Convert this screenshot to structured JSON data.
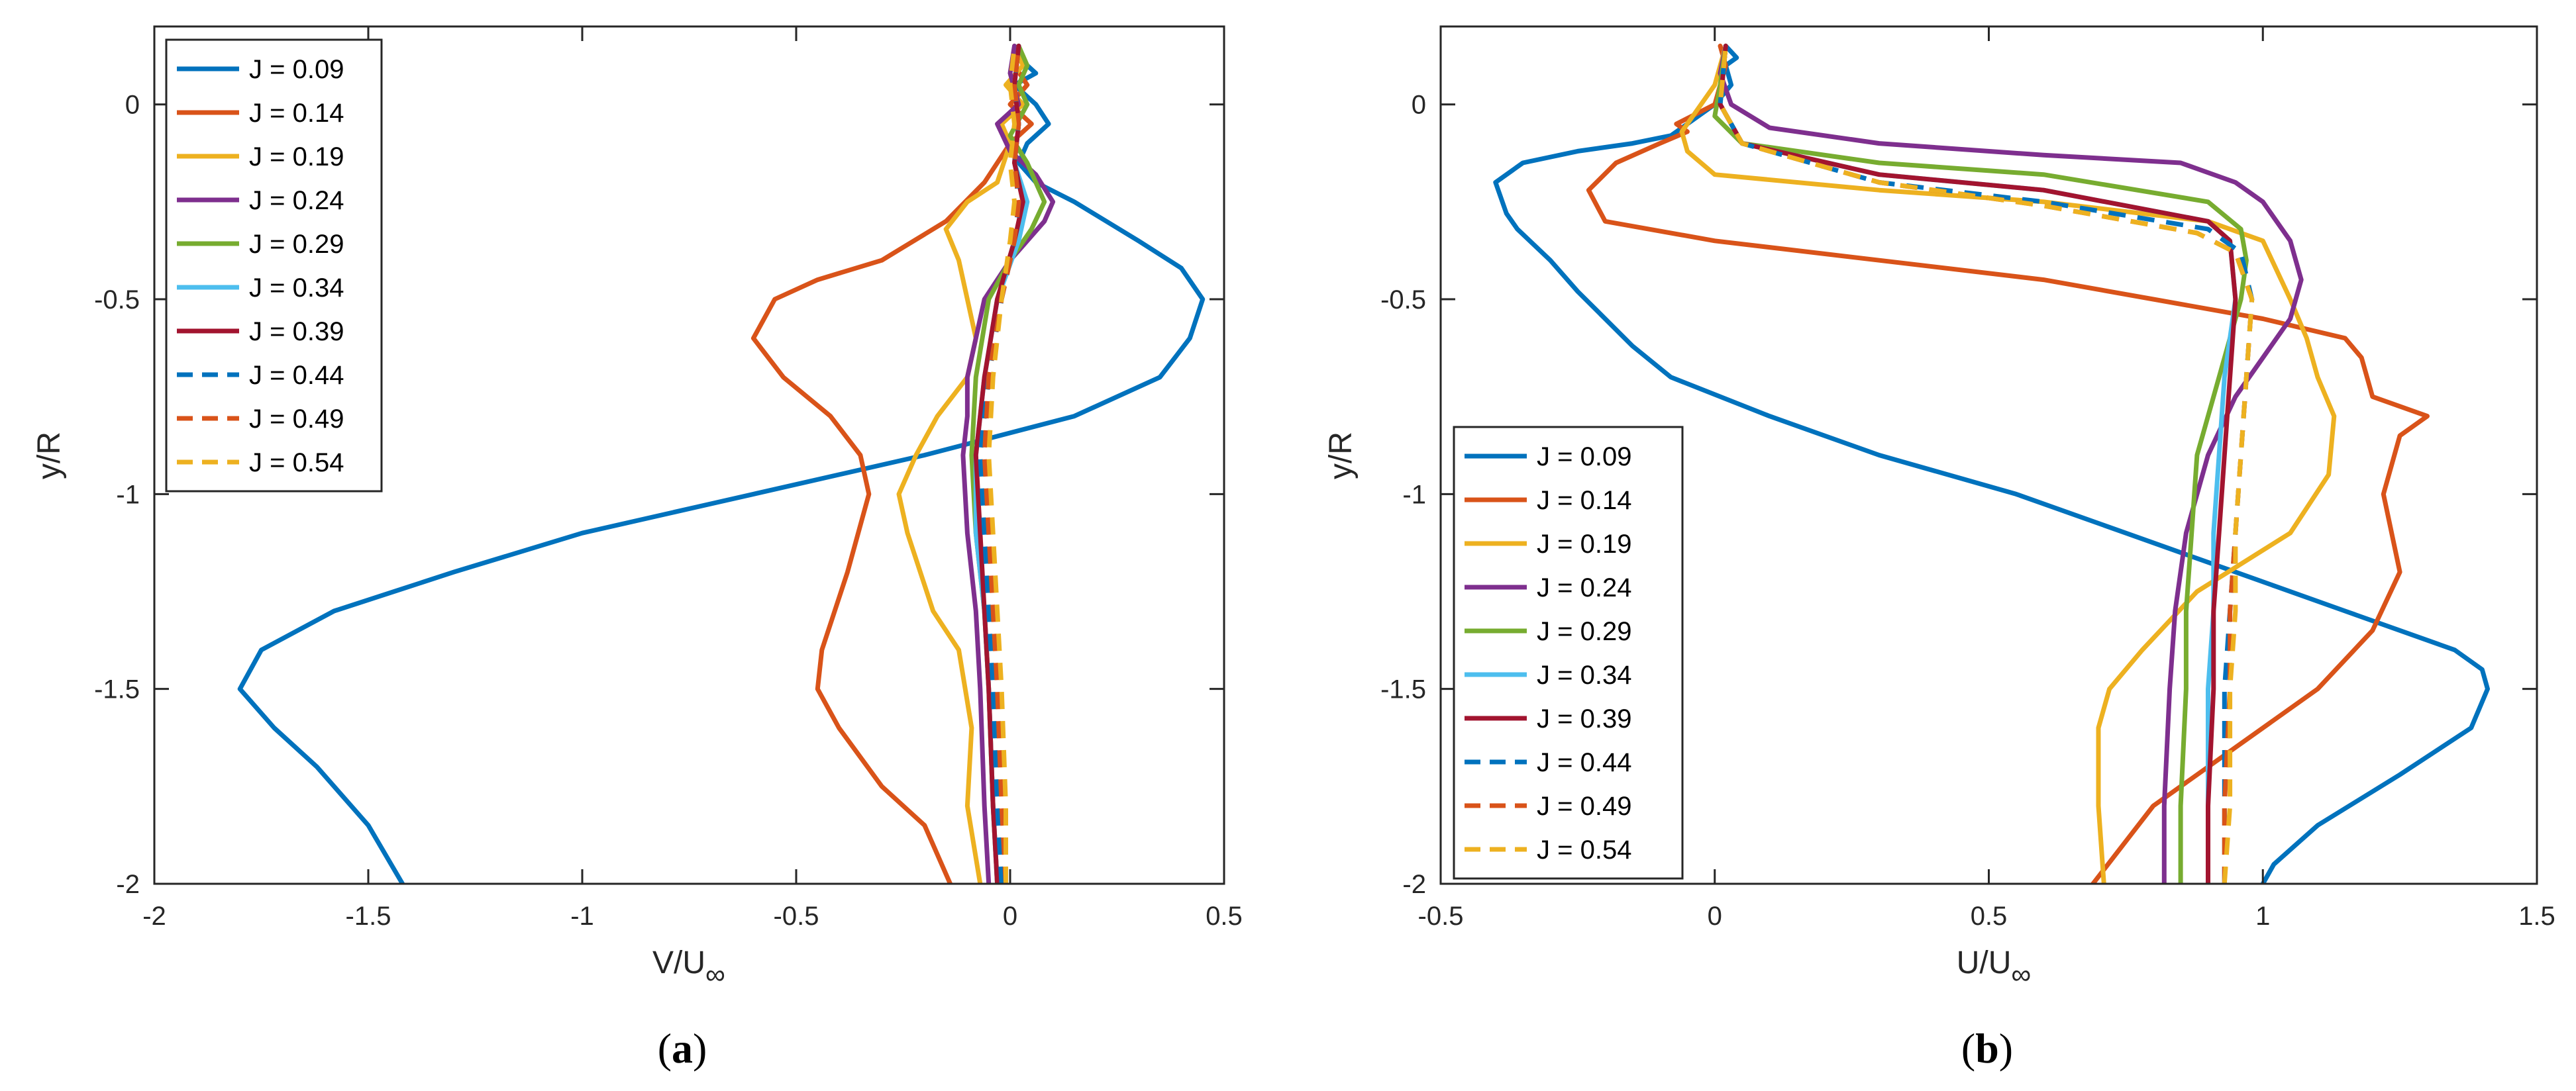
{
  "figure": {
    "panel_a_caption": {
      "open": "(",
      "letter": "a",
      "close": ")"
    },
    "panel_b_caption": {
      "open": "(",
      "letter": "b",
      "close": ")"
    }
  },
  "chart_data": [
    {
      "type": "line",
      "panel": "a",
      "xlabel": {
        "main": "V/U",
        "sub": "∞"
      },
      "ylabel": "y/R",
      "xlim": [
        -2,
        0.5
      ],
      "ylim": [
        -2,
        0.2
      ],
      "xticks": [
        -2,
        -1.5,
        -1,
        -0.5,
        0,
        0.5
      ],
      "xtick_labels": [
        "-2",
        "-1.5",
        "-1",
        "-0.5",
        "0",
        "0.5"
      ],
      "yticks": [
        -2,
        -1.5,
        -1,
        -0.5,
        0
      ],
      "ytick_labels": [
        "-2",
        "-1.5",
        "-1",
        "-0.5",
        "0"
      ],
      "grid": false,
      "legend_position": "top-left",
      "series": [
        {
          "name": "J = 0.09",
          "color": "#0072BD",
          "dash": "solid",
          "x": [
            -1.42,
            -1.5,
            -1.62,
            -1.72,
            -1.8,
            -1.75,
            -1.58,
            -1.3,
            -1.0,
            -0.6,
            -0.2,
            0.15,
            0.35,
            0.42,
            0.45,
            0.4,
            0.3,
            0.15,
            0.06,
            0.02,
            0.04,
            0.09,
            0.06,
            0.01,
            0.06,
            0.02,
            0.02
          ],
          "y": [
            -2.0,
            -1.85,
            -1.7,
            -1.6,
            -1.5,
            -1.4,
            -1.3,
            -1.2,
            -1.1,
            -1.0,
            -0.9,
            -0.8,
            -0.7,
            -0.6,
            -0.5,
            -0.42,
            -0.35,
            -0.25,
            -0.2,
            -0.15,
            -0.1,
            -0.05,
            0.0,
            0.05,
            0.08,
            0.12,
            0.15
          ]
        },
        {
          "name": "J = 0.14",
          "color": "#D95319",
          "dash": "solid",
          "x": [
            -0.14,
            -0.2,
            -0.3,
            -0.4,
            -0.45,
            -0.44,
            -0.38,
            -0.33,
            -0.35,
            -0.42,
            -0.53,
            -0.6,
            -0.55,
            -0.45,
            -0.3,
            -0.15,
            -0.06,
            0.0,
            0.05,
            0.0,
            0.04,
            0.01,
            0.02
          ],
          "y": [
            -2.0,
            -1.85,
            -1.75,
            -1.6,
            -1.5,
            -1.4,
            -1.2,
            -1.0,
            -0.9,
            -0.8,
            -0.7,
            -0.6,
            -0.5,
            -0.45,
            -0.4,
            -0.3,
            -0.2,
            -0.1,
            -0.05,
            0.0,
            0.05,
            0.1,
            0.15
          ]
        },
        {
          "name": "J = 0.19",
          "color": "#EDB120",
          "dash": "solid",
          "x": [
            -0.07,
            -0.1,
            -0.09,
            -0.12,
            -0.18,
            -0.24,
            -0.26,
            -0.22,
            -0.17,
            -0.1,
            -0.08,
            -0.1,
            -0.12,
            -0.15,
            -0.1,
            -0.03,
            0.0,
            -0.02,
            0.03,
            -0.01,
            0.03,
            0.01
          ],
          "y": [
            -2.0,
            -1.8,
            -1.6,
            -1.4,
            -1.3,
            -1.1,
            -1.0,
            -0.9,
            -0.8,
            -0.7,
            -0.6,
            -0.5,
            -0.4,
            -0.32,
            -0.25,
            -0.2,
            -0.1,
            -0.05,
            0.0,
            0.05,
            0.1,
            0.15
          ]
        },
        {
          "name": "J = 0.24",
          "color": "#7E2F8E",
          "dash": "solid",
          "x": [
            -0.05,
            -0.06,
            -0.07,
            -0.08,
            -0.1,
            -0.11,
            -0.1,
            -0.1,
            -0.08,
            -0.06,
            0.0,
            0.08,
            0.1,
            0.06,
            0.0,
            -0.03,
            0.02,
            0.0,
            0.01
          ],
          "y": [
            -2.0,
            -1.8,
            -1.5,
            -1.3,
            -1.1,
            -0.9,
            -0.8,
            -0.7,
            -0.6,
            -0.5,
            -0.4,
            -0.3,
            -0.25,
            -0.18,
            -0.12,
            -0.05,
            0.0,
            0.08,
            0.15
          ]
        },
        {
          "name": "J = 0.29",
          "color": "#77AC30",
          "dash": "solid",
          "x": [
            -0.03,
            -0.04,
            -0.05,
            -0.06,
            -0.08,
            -0.09,
            -0.08,
            -0.05,
            0.0,
            0.05,
            0.08,
            0.04,
            0.0,
            0.04,
            0.02,
            0.04,
            0.02
          ],
          "y": [
            -2.0,
            -1.8,
            -1.5,
            -1.3,
            -1.1,
            -0.9,
            -0.7,
            -0.5,
            -0.4,
            -0.32,
            -0.25,
            -0.15,
            -0.08,
            0.0,
            0.05,
            0.1,
            0.15
          ]
        },
        {
          "name": "J = 0.34",
          "color": "#4DBEEE",
          "dash": "solid",
          "x": [
            -0.03,
            -0.04,
            -0.05,
            -0.06,
            -0.08,
            -0.08,
            -0.06,
            -0.03,
            0.02,
            0.04,
            0.01,
            0.02,
            0.01,
            0.02
          ],
          "y": [
            -2.0,
            -1.8,
            -1.5,
            -1.3,
            -1.1,
            -0.9,
            -0.7,
            -0.5,
            -0.35,
            -0.25,
            -0.15,
            -0.05,
            0.05,
            0.15
          ]
        },
        {
          "name": "J = 0.39",
          "color": "#A2142F",
          "dash": "solid",
          "x": [
            -0.03,
            -0.04,
            -0.05,
            -0.06,
            -0.07,
            -0.08,
            -0.06,
            -0.03,
            0.01,
            0.03,
            0.01,
            0.02,
            0.01,
            0.02
          ],
          "y": [
            -2.0,
            -1.8,
            -1.5,
            -1.3,
            -1.1,
            -0.9,
            -0.7,
            -0.5,
            -0.35,
            -0.25,
            -0.15,
            -0.05,
            0.05,
            0.15
          ]
        },
        {
          "name": "J = 0.44",
          "color": "#0072BD",
          "dash": "dashed",
          "x": [
            -0.02,
            -0.03,
            -0.04,
            -0.05,
            -0.06,
            -0.07,
            -0.05,
            -0.02,
            0.01,
            0.02,
            0.01,
            0.02,
            0.01,
            0.02
          ],
          "y": [
            -2.0,
            -1.8,
            -1.5,
            -1.3,
            -1.1,
            -0.9,
            -0.7,
            -0.5,
            -0.35,
            -0.25,
            -0.15,
            -0.05,
            0.05,
            0.15
          ]
        },
        {
          "name": "J = 0.49",
          "color": "#D95319",
          "dash": "dashed",
          "x": [
            -0.01,
            -0.02,
            -0.03,
            -0.04,
            -0.05,
            -0.06,
            -0.05,
            -0.02,
            0.01,
            0.02,
            0.01,
            0.02,
            0.01,
            0.02
          ],
          "y": [
            -2.0,
            -1.8,
            -1.5,
            -1.3,
            -1.1,
            -0.9,
            -0.7,
            -0.5,
            -0.35,
            -0.25,
            -0.15,
            -0.05,
            0.05,
            0.15
          ]
        },
        {
          "name": "J = 0.54",
          "color": "#EDB120",
          "dash": "dashed",
          "x": [
            -0.01,
            -0.01,
            -0.02,
            -0.03,
            -0.04,
            -0.05,
            -0.04,
            -0.02,
            0.0,
            0.01,
            0.0,
            0.01,
            0.0,
            0.01
          ],
          "y": [
            -2.0,
            -1.8,
            -1.5,
            -1.3,
            -1.1,
            -0.9,
            -0.7,
            -0.5,
            -0.35,
            -0.25,
            -0.15,
            -0.05,
            0.05,
            0.15
          ]
        }
      ]
    },
    {
      "type": "line",
      "panel": "b",
      "xlabel": {
        "main": "U/U",
        "sub": "∞"
      },
      "ylabel": "y/R",
      "xlim": [
        -0.5,
        1.5
      ],
      "ylim": [
        -2,
        0.2
      ],
      "xticks": [
        -0.5,
        0,
        0.5,
        1,
        1.5
      ],
      "xtick_labels": [
        "-0.5",
        "0",
        "0.5",
        "1",
        "1.5"
      ],
      "yticks": [
        -2,
        -1.5,
        -1,
        -0.5,
        0
      ],
      "ytick_labels": [
        "-2",
        "-1.5",
        "-1",
        "-0.5",
        "0"
      ],
      "grid": false,
      "legend_position": "middle-left",
      "series": [
        {
          "name": "J = 0.09",
          "color": "#0072BD",
          "dash": "solid",
          "x": [
            1.0,
            1.02,
            1.1,
            1.25,
            1.38,
            1.41,
            1.4,
            1.35,
            1.15,
            0.95,
            0.75,
            0.55,
            0.3,
            0.1,
            -0.08,
            -0.15,
            -0.2,
            -0.25,
            -0.3,
            -0.36,
            -0.38,
            -0.4,
            -0.35,
            -0.25,
            -0.15,
            -0.08,
            -0.05,
            0.0,
            0.03,
            0.02,
            0.04,
            0.02
          ],
          "y": [
            -2.0,
            -1.95,
            -1.85,
            -1.72,
            -1.6,
            -1.5,
            -1.45,
            -1.4,
            -1.3,
            -1.2,
            -1.1,
            -1.0,
            -0.9,
            -0.8,
            -0.7,
            -0.62,
            -0.55,
            -0.48,
            -0.4,
            -0.32,
            -0.28,
            -0.2,
            -0.15,
            -0.12,
            -0.1,
            -0.08,
            -0.05,
            0.0,
            0.05,
            0.1,
            0.12,
            0.15
          ]
        },
        {
          "name": "J = 0.14",
          "color": "#D95319",
          "dash": "solid",
          "x": [
            0.69,
            0.8,
            0.95,
            1.1,
            1.2,
            1.25,
            1.22,
            1.25,
            1.3,
            1.2,
            1.18,
            1.15,
            1.0,
            0.8,
            0.6,
            0.3,
            0.0,
            -0.2,
            -0.23,
            -0.18,
            -0.1,
            -0.05,
            -0.07,
            0.0,
            0.02,
            0.01
          ],
          "y": [
            -2.0,
            -1.8,
            -1.65,
            -1.5,
            -1.35,
            -1.2,
            -1.0,
            -0.85,
            -0.8,
            -0.75,
            -0.65,
            -0.6,
            -0.55,
            -0.5,
            -0.45,
            -0.4,
            -0.35,
            -0.3,
            -0.22,
            -0.15,
            -0.1,
            -0.07,
            -0.05,
            0.0,
            0.1,
            0.15
          ]
        },
        {
          "name": "J = 0.19",
          "color": "#EDB120",
          "dash": "solid",
          "x": [
            0.71,
            0.7,
            0.7,
            0.72,
            0.78,
            0.88,
            1.05,
            1.12,
            1.13,
            1.1,
            1.08,
            1.05,
            1.0,
            0.9,
            0.6,
            0.3,
            0.0,
            -0.05,
            -0.06,
            -0.04,
            0.0,
            0.02
          ],
          "y": [
            -2.0,
            -1.8,
            -1.6,
            -1.5,
            -1.4,
            -1.25,
            -1.1,
            -0.95,
            -0.8,
            -0.7,
            -0.6,
            -0.5,
            -0.35,
            -0.3,
            -0.25,
            -0.22,
            -0.18,
            -0.12,
            -0.07,
            -0.03,
            0.05,
            0.15
          ]
        },
        {
          "name": "J = 0.24",
          "color": "#7E2F8E",
          "dash": "solid",
          "x": [
            0.82,
            0.82,
            0.83,
            0.84,
            0.86,
            0.9,
            0.95,
            1.0,
            1.05,
            1.07,
            1.05,
            1.0,
            0.95,
            0.85,
            0.6,
            0.3,
            0.1,
            0.03,
            0.01,
            0.02
          ],
          "y": [
            -2.0,
            -1.8,
            -1.5,
            -1.3,
            -1.1,
            -0.9,
            -0.75,
            -0.65,
            -0.55,
            -0.45,
            -0.35,
            -0.25,
            -0.2,
            -0.15,
            -0.13,
            -0.1,
            -0.06,
            0.0,
            0.08,
            0.15
          ]
        },
        {
          "name": "J = 0.29",
          "color": "#77AC30",
          "dash": "solid",
          "x": [
            0.85,
            0.85,
            0.86,
            0.86,
            0.87,
            0.88,
            0.92,
            0.96,
            0.97,
            0.96,
            0.9,
            0.6,
            0.3,
            0.05,
            0.0,
            0.01,
            0.02
          ],
          "y": [
            -2.0,
            -1.8,
            -1.5,
            -1.3,
            -1.1,
            -0.9,
            -0.7,
            -0.5,
            -0.4,
            -0.32,
            -0.25,
            -0.18,
            -0.15,
            -0.1,
            -0.03,
            0.05,
            0.15
          ]
        },
        {
          "name": "J = 0.34",
          "color": "#4DBEEE",
          "dash": "solid",
          "x": [
            0.9,
            0.9,
            0.9,
            0.91,
            0.91,
            0.92,
            0.93,
            0.95,
            0.94,
            0.9,
            0.6,
            0.3,
            0.05,
            0.01,
            0.02
          ],
          "y": [
            -2.0,
            -1.8,
            -1.5,
            -1.3,
            -1.1,
            -0.9,
            -0.7,
            -0.5,
            -0.35,
            -0.3,
            -0.22,
            -0.18,
            -0.1,
            0.0,
            0.15
          ]
        },
        {
          "name": "J = 0.39",
          "color": "#A2142F",
          "dash": "solid",
          "x": [
            0.9,
            0.9,
            0.91,
            0.91,
            0.92,
            0.93,
            0.94,
            0.95,
            0.94,
            0.9,
            0.6,
            0.3,
            0.05,
            0.01,
            0.02
          ],
          "y": [
            -2.0,
            -1.8,
            -1.5,
            -1.3,
            -1.1,
            -0.9,
            -0.7,
            -0.5,
            -0.35,
            -0.3,
            -0.22,
            -0.18,
            -0.1,
            0.0,
            0.15
          ]
        },
        {
          "name": "J = 0.44",
          "color": "#0072BD",
          "dash": "dashed",
          "x": [
            0.93,
            0.93,
            0.93,
            0.94,
            0.95,
            0.96,
            0.97,
            0.98,
            0.96,
            0.9,
            0.6,
            0.3,
            0.05,
            0.01,
            0.02
          ],
          "y": [
            -2.0,
            -1.8,
            -1.5,
            -1.3,
            -1.1,
            -0.9,
            -0.7,
            -0.5,
            -0.38,
            -0.32,
            -0.25,
            -0.2,
            -0.1,
            0.0,
            0.15
          ]
        },
        {
          "name": "J = 0.49",
          "color": "#D95319",
          "dash": "dashed",
          "x": [
            0.93,
            0.93,
            0.94,
            0.94,
            0.95,
            0.96,
            0.97,
            0.98,
            0.95,
            0.88,
            0.6,
            0.3,
            0.05,
            0.01,
            0.02
          ],
          "y": [
            -2.0,
            -1.8,
            -1.5,
            -1.3,
            -1.1,
            -0.9,
            -0.7,
            -0.5,
            -0.38,
            -0.33,
            -0.26,
            -0.2,
            -0.1,
            0.0,
            0.15
          ]
        },
        {
          "name": "J = 0.54",
          "color": "#EDB120",
          "dash": "dashed",
          "x": [
            0.93,
            0.94,
            0.94,
            0.95,
            0.95,
            0.96,
            0.97,
            0.98,
            0.95,
            0.88,
            0.6,
            0.3,
            0.05,
            0.01,
            0.02
          ],
          "y": [
            -2.0,
            -1.8,
            -1.5,
            -1.3,
            -1.1,
            -0.9,
            -0.7,
            -0.5,
            -0.38,
            -0.33,
            -0.26,
            -0.2,
            -0.1,
            0.0,
            0.15
          ]
        }
      ]
    }
  ]
}
